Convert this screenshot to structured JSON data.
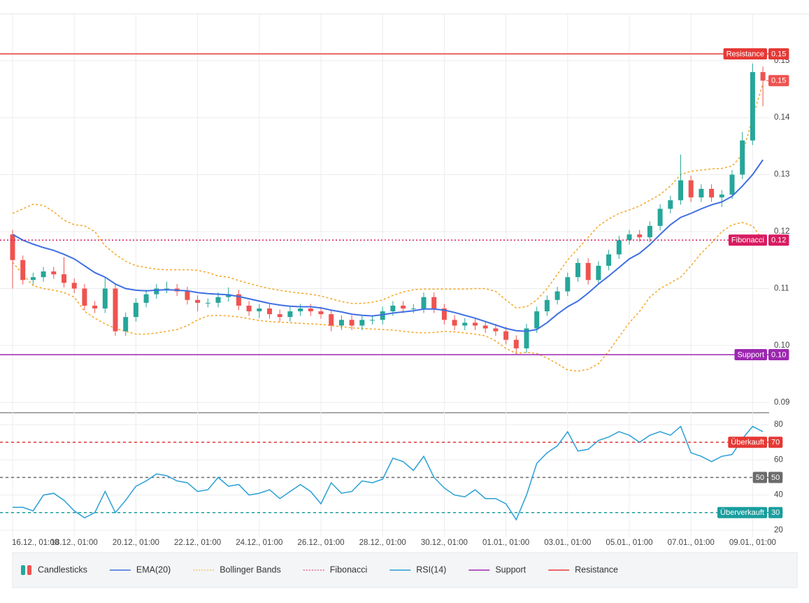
{
  "chart_data": [
    {
      "type": "candlestick",
      "categories": [
        "16.12., 01:00",
        null,
        null,
        null,
        null,
        null,
        "18.12., 01:00",
        null,
        null,
        null,
        null,
        null,
        "20.12., 01:00",
        null,
        null,
        null,
        null,
        null,
        "22.12., 01:00",
        null,
        null,
        null,
        null,
        null,
        "24.12., 01:00",
        null,
        null,
        null,
        null,
        null,
        "26.12., 01:00",
        null,
        null,
        null,
        null,
        null,
        "28.12., 01:00",
        null,
        null,
        null,
        null,
        null,
        "30.12., 01:00",
        null,
        null,
        null,
        null,
        null,
        "01.01., 01:00",
        null,
        null,
        null,
        null,
        null,
        "03.01., 01:00",
        null,
        null,
        null,
        null,
        null,
        "05.01., 01:00",
        null,
        null,
        null,
        null,
        null,
        "07.01., 01:00",
        null,
        null,
        null,
        null,
        null,
        "09.01., 01:00",
        null
      ],
      "candles": {
        "name": "Candlesticks",
        "up_color": "#26a69a",
        "down_color": "#ef5350",
        "open": [
          0.1195,
          0.115,
          0.1115,
          0.112,
          0.113,
          0.1125,
          0.111,
          0.11,
          0.107,
          0.1065,
          0.11,
          0.1025,
          0.105,
          0.1075,
          0.109,
          0.11,
          0.11,
          0.1095,
          0.108,
          0.1075,
          0.1075,
          0.1085,
          0.109,
          0.107,
          0.106,
          0.1065,
          0.1055,
          0.105,
          0.106,
          0.1065,
          0.106,
          0.1055,
          0.1035,
          0.1045,
          0.1035,
          0.1045,
          0.1045,
          0.106,
          0.107,
          0.1065,
          0.1065,
          0.1085,
          0.1065,
          0.1045,
          0.1035,
          0.104,
          0.1035,
          0.103,
          0.1025,
          0.101,
          0.0995,
          0.103,
          0.106,
          0.108,
          0.1095,
          0.112,
          0.1145,
          0.1115,
          0.114,
          0.116,
          0.1185,
          0.1195,
          0.119,
          0.121,
          0.124,
          0.1255,
          0.129,
          0.126,
          0.1275,
          0.126,
          0.1265,
          0.13,
          0.136,
          0.148
        ],
        "high": [
          0.1203,
          0.1158,
          0.1128,
          0.1138,
          0.1138,
          0.1155,
          0.1118,
          0.1108,
          0.1078,
          0.112,
          0.1108,
          0.1058,
          0.1083,
          0.1098,
          0.1108,
          0.1112,
          0.1108,
          0.1103,
          0.1088,
          0.1083,
          0.1093,
          0.1102,
          0.1098,
          0.1078,
          0.1073,
          0.1073,
          0.1063,
          0.1068,
          0.1073,
          0.1073,
          0.1068,
          0.1063,
          0.1053,
          0.1053,
          0.1053,
          0.1053,
          0.1068,
          0.1078,
          0.1078,
          0.1073,
          0.1093,
          0.1093,
          0.1073,
          0.1053,
          0.1048,
          0.1048,
          0.1043,
          0.1038,
          0.1033,
          0.1018,
          0.1038,
          0.1068,
          0.1088,
          0.1103,
          0.1128,
          0.1153,
          0.1153,
          0.1148,
          0.1168,
          0.1193,
          0.1203,
          0.1203,
          0.1218,
          0.1248,
          0.1263,
          0.1335,
          0.1298,
          0.1283,
          0.1283,
          0.1273,
          0.1308,
          0.1375,
          0.1495,
          0.149
        ],
        "low": [
          0.11,
          0.1107,
          0.1107,
          0.1112,
          0.1117,
          0.1102,
          0.1092,
          0.1062,
          0.1057,
          0.1057,
          0.1017,
          0.1017,
          0.1042,
          0.1067,
          0.1082,
          0.1092,
          0.1087,
          0.1072,
          0.106,
          0.1067,
          0.1067,
          0.1077,
          0.1062,
          0.1052,
          0.1048,
          0.1047,
          0.1042,
          0.1042,
          0.1052,
          0.1052,
          0.1047,
          0.1025,
          0.1027,
          0.1027,
          0.1027,
          0.1037,
          0.1037,
          0.1052,
          0.1057,
          0.1057,
          0.1057,
          0.1057,
          0.1037,
          0.1027,
          0.1027,
          0.1027,
          0.1022,
          0.1017,
          0.1002,
          0.0987,
          0.0987,
          0.1022,
          0.1052,
          0.1072,
          0.1087,
          0.1112,
          0.1107,
          0.1107,
          0.1132,
          0.1152,
          0.1177,
          0.1182,
          0.1182,
          0.1202,
          0.1232,
          0.1247,
          0.1252,
          0.1252,
          0.1252,
          0.1243,
          0.1257,
          0.1292,
          0.1352,
          0.142
        ],
        "close": [
          0.115,
          0.1115,
          0.112,
          0.113,
          0.1125,
          0.111,
          0.11,
          0.107,
          0.1065,
          0.11,
          0.1025,
          0.105,
          0.1075,
          0.109,
          0.11,
          0.11,
          0.1095,
          0.108,
          0.1075,
          0.1075,
          0.1085,
          0.109,
          0.107,
          0.106,
          0.1065,
          0.1055,
          0.105,
          0.106,
          0.1065,
          0.106,
          0.1055,
          0.1035,
          0.1045,
          0.1035,
          0.1045,
          0.1045,
          0.106,
          0.107,
          0.1065,
          0.1065,
          0.1085,
          0.1065,
          0.1045,
          0.1035,
          0.104,
          0.1035,
          0.103,
          0.1025,
          0.101,
          0.0995,
          0.103,
          0.106,
          0.108,
          0.1095,
          0.112,
          0.1145,
          0.1115,
          0.114,
          0.116,
          0.1185,
          0.1195,
          0.119,
          0.121,
          0.124,
          0.1255,
          0.129,
          0.126,
          0.1275,
          0.126,
          0.1265,
          0.13,
          0.136,
          0.148,
          0.1465
        ]
      },
      "series": [
        {
          "name": "EMA(20)",
          "color": "#3f6fe2",
          "values": [
            0.1195,
            0.1185,
            0.1178,
            0.1172,
            0.1167,
            0.116,
            0.1152,
            0.114,
            0.1128,
            0.112,
            0.1108,
            0.11,
            0.1097,
            0.1096,
            0.1097,
            0.1098,
            0.1097,
            0.1096,
            0.1093,
            0.1091,
            0.109,
            0.1089,
            0.1086,
            0.1082,
            0.1078,
            0.1074,
            0.1071,
            0.1069,
            0.1068,
            0.1068,
            0.1066,
            0.1062,
            0.1059,
            0.1055,
            0.1053,
            0.1052,
            0.1054,
            0.1057,
            0.1059,
            0.1061,
            0.1064,
            0.1064,
            0.1062,
            0.1058,
            0.1053,
            0.1048,
            0.1042,
            0.1036,
            0.103,
            0.1026,
            0.1025,
            0.1028,
            0.104,
            0.1055,
            0.1068,
            0.1078,
            0.1092,
            0.1108,
            0.1122,
            0.1137,
            0.1152,
            0.1162,
            0.1177,
            0.1195,
            0.1212,
            0.1225,
            0.1232,
            0.124,
            0.1247,
            0.1252,
            0.1262,
            0.128,
            0.13,
            0.1326
          ]
        },
        {
          "name": "Bollinger Bands",
          "color": "#f5a623",
          "upper": [
            0.1232,
            0.124,
            0.1248,
            0.1246,
            0.1235,
            0.122,
            0.1212,
            0.121,
            0.12,
            0.1175,
            0.116,
            0.1148,
            0.114,
            0.1137,
            0.1134,
            0.1133,
            0.1133,
            0.1133,
            0.1132,
            0.1128,
            0.1122,
            0.112,
            0.1114,
            0.1109,
            0.1104,
            0.11,
            0.1097,
            0.1094,
            0.1092,
            0.109,
            0.1087,
            0.1082,
            0.1077,
            0.1074,
            0.1074,
            0.1076,
            0.108,
            0.1088,
            0.1094,
            0.1098,
            0.1099,
            0.1099,
            0.1099,
            0.1099,
            0.1099,
            0.11,
            0.11,
            0.1095,
            0.108,
            0.1066,
            0.1068,
            0.108,
            0.11,
            0.1125,
            0.115,
            0.117,
            0.119,
            0.121,
            0.1222,
            0.1232,
            0.1238,
            0.1245,
            0.1255,
            0.1265,
            0.128,
            0.13,
            0.1306,
            0.1308,
            0.131,
            0.1311,
            0.1315,
            0.1335,
            0.14,
            0.146
          ],
          "lower": [
            0.1146,
            0.1125,
            0.1105,
            0.11,
            0.1097,
            0.1093,
            0.1085,
            0.106,
            0.1048,
            0.1038,
            0.103,
            0.1025,
            0.102,
            0.102,
            0.1022,
            0.1025,
            0.1028,
            0.1035,
            0.1045,
            0.1052,
            0.1053,
            0.1052,
            0.105,
            0.1047,
            0.1044,
            0.1042,
            0.1041,
            0.104,
            0.1039,
            0.1038,
            0.1037,
            0.1035,
            0.1033,
            0.1031,
            0.103,
            0.1029,
            0.1028,
            0.1027,
            0.1025,
            0.1023,
            0.1022,
            0.1023,
            0.1025,
            0.1024,
            0.1022,
            0.102,
            0.1017,
            0.1008,
            0.0995,
            0.0986,
            0.0988,
            0.0986,
            0.0978,
            0.0968,
            0.0957,
            0.0955,
            0.0958,
            0.0968,
            0.099,
            0.1015,
            0.104,
            0.106,
            0.1085,
            0.11,
            0.111,
            0.112,
            0.114,
            0.1162,
            0.118,
            0.12,
            0.1212,
            0.1216,
            0.121,
            0.1185
          ]
        }
      ],
      "levels": [
        {
          "name": "Fibonacci",
          "value": 0.1185,
          "value_label": "0.12",
          "color": "#d81b60",
          "style": "dotted"
        },
        {
          "name": "Support",
          "value": 0.0984,
          "value_label": "0.10",
          "color": "#9c27b0",
          "style": "solid"
        },
        {
          "name": "Resistance",
          "value": 0.1512,
          "value_label": "0.15",
          "color": "#e53935",
          "style": "solid"
        }
      ],
      "last_price": {
        "value": 0.1465,
        "value_label": "0.15"
      },
      "ylim": [
        0.0882,
        0.1582
      ],
      "yticks": [
        0.09,
        {
          "value": 0.1,
          "label": "0.10"
        },
        0.11,
        0.12,
        0.13,
        0.14,
        0.15
      ],
      "grid": true
    },
    {
      "type": "line",
      "series": [
        {
          "name": "RSI(14)",
          "color": "#2a9fd6",
          "values": [
            33,
            33,
            31,
            40,
            41,
            37,
            31,
            27,
            30,
            42,
            30,
            37,
            45,
            48,
            52,
            51,
            48,
            47,
            42,
            43,
            50,
            45,
            46,
            40,
            41,
            43,
            38,
            42,
            46,
            42,
            35,
            47,
            41,
            42,
            48,
            47,
            49,
            61,
            59,
            54,
            62,
            50,
            44,
            40,
            39,
            43,
            38,
            38,
            35,
            26,
            40,
            58,
            64,
            68,
            76,
            65,
            66,
            71,
            73,
            76,
            74,
            70,
            74,
            76,
            74,
            79,
            64,
            62,
            59,
            62,
            63,
            72,
            79,
            76
          ]
        }
      ],
      "levels": [
        {
          "name": "Überkauft",
          "value": 70,
          "color": "#e53935",
          "style": "dashed"
        },
        {
          "name": "50",
          "value": 50,
          "color": "#6b6b6b",
          "style": "dashed"
        },
        {
          "name": "Überverkauft",
          "value": 30,
          "color": "#1a9e9e",
          "style": "dashed"
        }
      ],
      "ylim": [
        16,
        86
      ],
      "yticks": [
        20,
        30,
        40,
        50,
        60,
        70,
        80
      ],
      "grid": true
    }
  ]
}
